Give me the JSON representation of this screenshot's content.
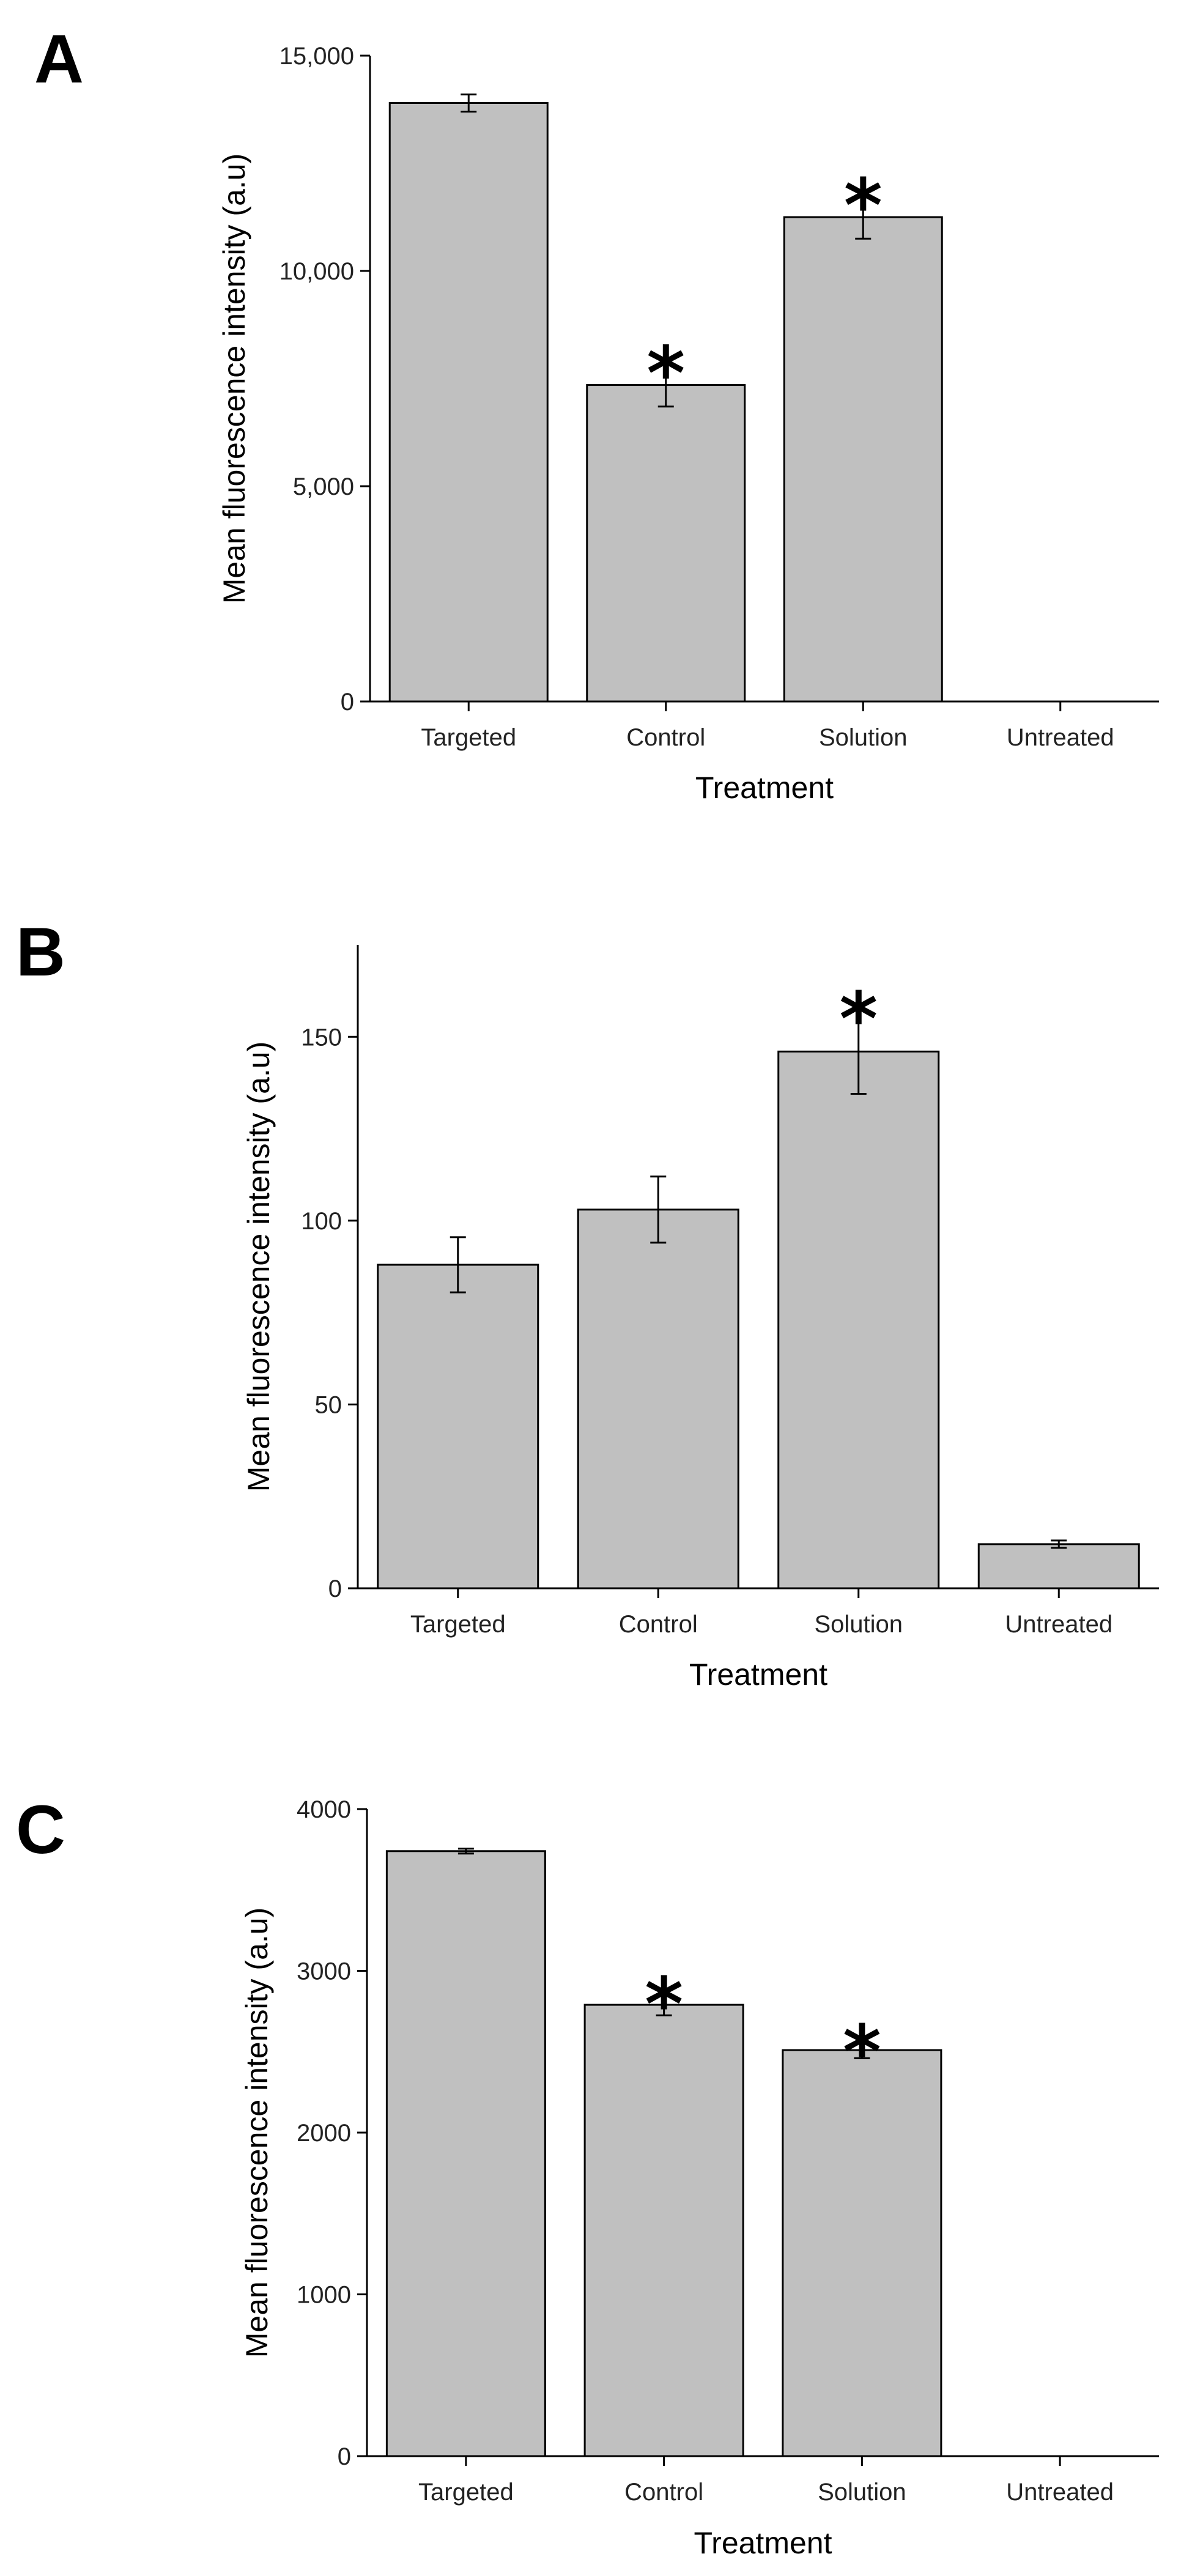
{
  "chart_data": [
    {
      "type": "bar",
      "panel": "A",
      "categories": [
        "Targeted",
        "Control",
        "Solution",
        "Untreated"
      ],
      "values": [
        13900,
        7350,
        11250,
        0
      ],
      "errors": [
        200,
        500,
        500,
        0
      ],
      "significance": [
        "",
        "*",
        "*",
        ""
      ],
      "xlabel": "Treatment",
      "ylabel": "Mean fluorescence intensity (a.u)",
      "ylim": [
        0,
        15000
      ],
      "yticks": [
        0,
        5000,
        10000,
        15000
      ],
      "ytick_labels": [
        "0",
        "5,000",
        "10,000",
        "15,000"
      ],
      "bar_color": "#c0c0c0",
      "grid": false
    },
    {
      "type": "bar",
      "panel": "B",
      "categories": [
        "Targeted",
        "Control",
        "Solution",
        "Untreated"
      ],
      "values": [
        88,
        103,
        146,
        12
      ],
      "errors": [
        7.5,
        9,
        11.5,
        1
      ],
      "significance": [
        "",
        "",
        "*",
        ""
      ],
      "xlabel": "Treatment",
      "ylabel": "Mean fluorescence intensity (a.u)",
      "ylim": [
        0,
        175
      ],
      "yticks": [
        0,
        50,
        100,
        150
      ],
      "ytick_labels": [
        "0",
        "50",
        "100",
        "150"
      ],
      "bar_color": "#c0c0c0",
      "grid": false
    },
    {
      "type": "bar",
      "panel": "C",
      "categories": [
        "Targeted",
        "Control",
        "Solution",
        "Untreated"
      ],
      "values": [
        3740,
        2790,
        2510,
        0
      ],
      "errors": [
        15,
        65,
        50,
        0
      ],
      "significance": [
        "",
        "*",
        "*",
        ""
      ],
      "xlabel": "Treatment",
      "ylabel": "Mean fluorescence intensity (a.u)",
      "ylim": [
        0,
        4000
      ],
      "yticks": [
        0,
        1000,
        2000,
        3000,
        4000
      ],
      "ytick_labels": [
        "0",
        "1000",
        "2000",
        "3000",
        "4000"
      ],
      "bar_color": "#c0c0c0",
      "grid": false
    }
  ]
}
